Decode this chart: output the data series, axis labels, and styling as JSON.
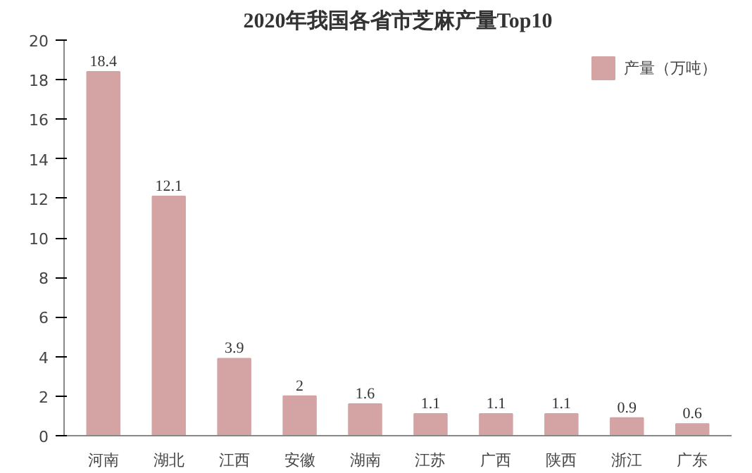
{
  "chart_data": {
    "type": "bar",
    "title": "2020年我国各省市芝麻产量Top10",
    "categories": [
      "河南",
      "湖北",
      "江西",
      "安徽",
      "湖南",
      "江苏",
      "广西",
      "陕西",
      "浙江",
      "广东"
    ],
    "series": [
      {
        "name": "产量（万吨）",
        "color": "#d4a3a3",
        "values": [
          18.4,
          12.1,
          3.9,
          2,
          1.6,
          1.1,
          1.1,
          1.1,
          0.9,
          0.6
        ]
      }
    ],
    "ylim": [
      0,
      20
    ],
    "yticks": [
      0,
      2,
      4,
      6,
      8,
      10,
      12,
      14,
      16,
      18,
      20
    ],
    "grid": false,
    "legend": "top right",
    "data_labels": true
  }
}
